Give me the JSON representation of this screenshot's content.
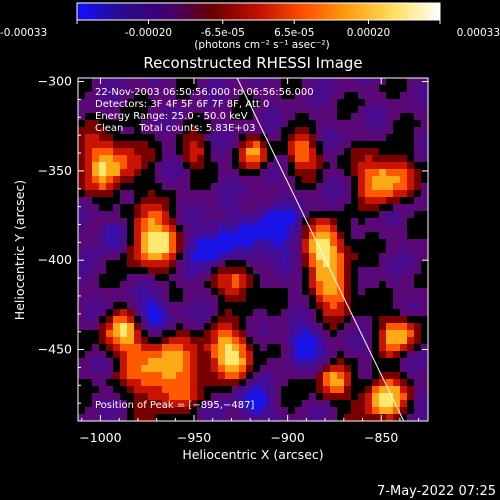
{
  "colorbar": {
    "tick_labels": [
      "-0.00033",
      "-0.00020",
      "-6.5e-05",
      "6.5e-05",
      "0.00020",
      "0.00033"
    ],
    "tick_values": [
      -0.00033,
      -0.0002,
      -6.5e-05,
      6.5e-05,
      0.0002,
      0.00033
    ],
    "range": [
      -0.00033,
      0.00033
    ],
    "units": "(photons cm⁻² s⁻¹ asec⁻²)",
    "colors": [
      "#1010ff",
      "#2a0a8a",
      "#400070",
      "#6a0000",
      "#c01000",
      "#ff5000",
      "#ffa010",
      "#ffe060",
      "#ffffff"
    ]
  },
  "chart_data": {
    "type": "heatmap",
    "title": "Reconstructed RHESSI Image",
    "xlabel": "Heliocentric X (arcsec)",
    "ylabel": "Heliocentric Y (arcsec)",
    "xlim": [
      -1012,
      -825
    ],
    "ylim": [
      -490,
      -298
    ],
    "x_ticks": [
      -1000,
      -950,
      -900,
      -850
    ],
    "y_ticks": [
      -300,
      -350,
      -400,
      -450
    ],
    "x_tick_labels": [
      "−1000",
      "−950",
      "−900",
      "−850"
    ],
    "y_tick_labels": [
      "−300",
      "−350",
      "−400",
      "−450"
    ],
    "annotations": [
      "22-Nov-2003 06:50:56.000 to 06:56:56.000",
      "Detectors: 3F 4F 5F 6F 7F 8F, Att 0",
      "Energy Range: 25.0 - 50.0 keV",
      "Clean     Total counts: 5.83E+03"
    ],
    "peak_label": "Position of Peak = [−895,−487]",
    "peak": [
      -895,
      -487
    ],
    "limb_line": [
      [
        -927,
        -298
      ],
      [
        -838,
        -490
      ]
    ],
    "grid": false
  },
  "footer": {
    "timestamp": "7-May-2022 07:25"
  }
}
